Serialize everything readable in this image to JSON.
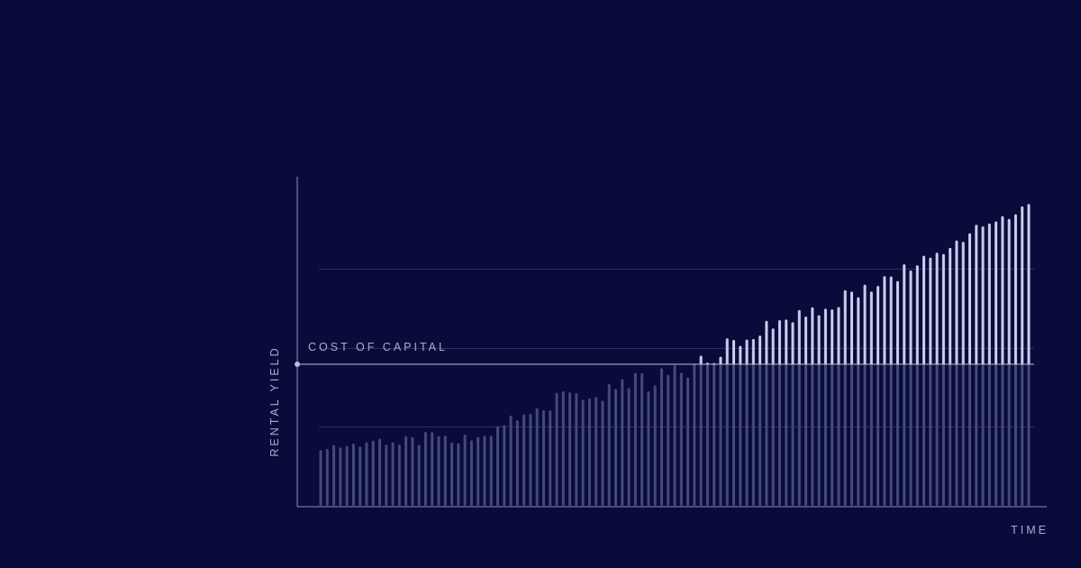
{
  "chart_data": {
    "type": "bar",
    "ylabel": "RENTAL YIELD",
    "xlabel": "TIME",
    "threshold": {
      "label": "COST OF CAPITAL",
      "value": 0.43
    },
    "ylim": [
      0,
      1
    ],
    "grid": "horizontal",
    "gridlines": [
      0.24,
      0.48,
      0.72
    ],
    "colors": {
      "background": "#090c3a",
      "axis": "#8a8fb5",
      "gridline": "#2b2f5f",
      "below_threshold": "#454a78",
      "above_threshold": "#c8cdea"
    },
    "values": [
      0.169,
      0.173,
      0.185,
      0.177,
      0.182,
      0.189,
      0.18,
      0.193,
      0.198,
      0.204,
      0.186,
      0.193,
      0.186,
      0.212,
      0.209,
      0.185,
      0.225,
      0.224,
      0.212,
      0.213,
      0.192,
      0.19,
      0.216,
      0.199,
      0.209,
      0.213,
      0.213,
      0.242,
      0.245,
      0.274,
      0.26,
      0.278,
      0.279,
      0.297,
      0.291,
      0.29,
      0.343,
      0.348,
      0.345,
      0.342,
      0.322,
      0.326,
      0.331,
      0.319,
      0.37,
      0.355,
      0.385,
      0.358,
      0.404,
      0.403,
      0.348,
      0.366,
      0.418,
      0.398,
      0.427,
      0.404,
      0.39,
      0.432,
      0.456,
      0.435,
      0.434,
      0.453,
      0.509,
      0.504,
      0.486,
      0.505,
      0.507,
      0.517,
      0.562,
      0.539,
      0.564,
      0.566,
      0.558,
      0.595,
      0.575,
      0.603,
      0.579,
      0.599,
      0.597,
      0.604,
      0.655,
      0.651,
      0.634,
      0.672,
      0.651,
      0.668,
      0.698,
      0.697,
      0.683,
      0.734,
      0.715,
      0.731,
      0.76,
      0.754,
      0.769,
      0.765,
      0.784,
      0.806,
      0.802,
      0.828,
      0.854,
      0.849,
      0.858,
      0.864,
      0.88,
      0.872,
      0.886,
      0.91,
      0.917
    ]
  }
}
